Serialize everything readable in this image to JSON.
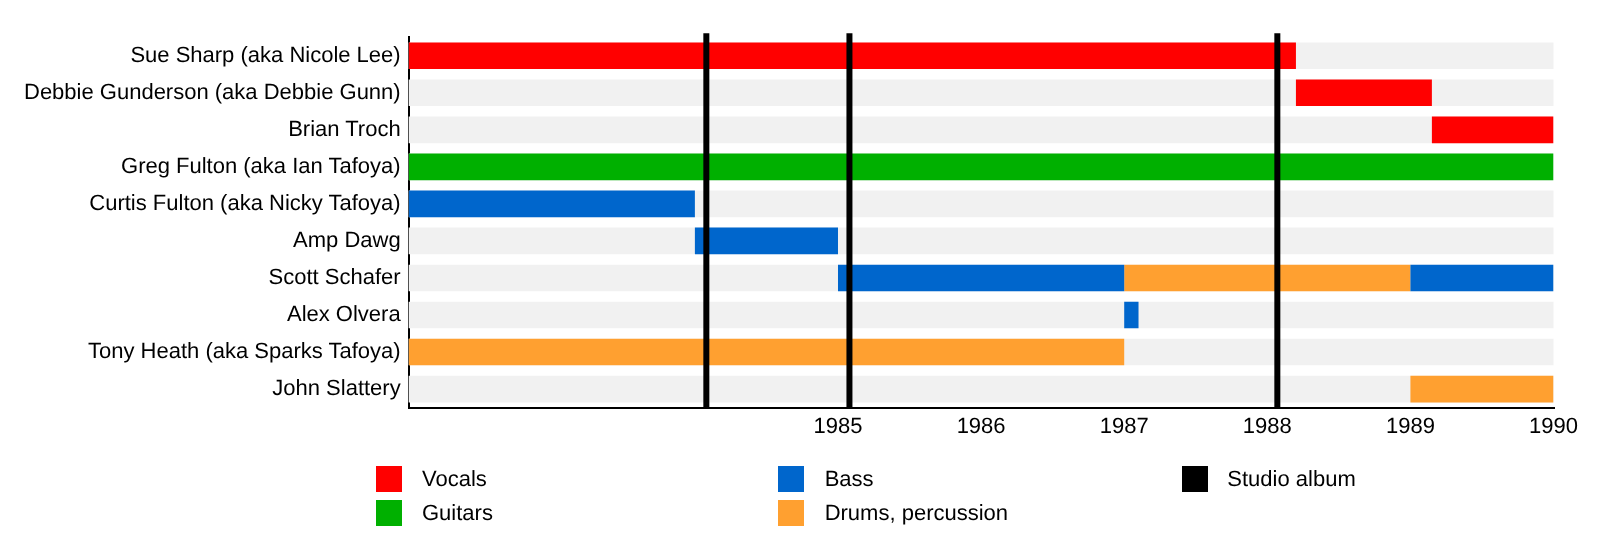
{
  "chart_data": {
    "type": "bar",
    "orientation": "horizontal",
    "categories": [
      "Sue Sharp (aka Nicole Lee)",
      "Debbie Gunderson (aka Debbie Gunn)",
      "Brian Troch",
      "Greg Fulton (aka Ian Tafoya)",
      "Curtis Fulton (aka Nicky Tafoya)",
      "Amp Dawg",
      "Scott Schafer",
      "Alex Olvera",
      "Tony Heath (aka Sparks Tafoya)",
      "John Slattery"
    ],
    "xlim": [
      1982,
      1990
    ],
    "xticks": [
      1985,
      1986,
      1987,
      1988,
      1989,
      1990
    ],
    "grid": false,
    "legend": "bottom",
    "series": [
      {
        "name": "Vocals",
        "color": "#ff0000",
        "base": [
          1982,
          1988.2,
          1989.15,
          null,
          null,
          null,
          null,
          null,
          null,
          null
        ],
        "values": [
          6.2,
          0.95,
          0.85,
          null,
          null,
          null,
          null,
          null,
          null,
          null
        ]
      },
      {
        "name": "Guitars",
        "color": "#00b000",
        "base": [
          null,
          null,
          null,
          1982,
          null,
          null,
          null,
          null,
          null,
          null
        ],
        "values": [
          null,
          null,
          null,
          8,
          null,
          null,
          null,
          null,
          null,
          null
        ]
      },
      {
        "name": "Bass",
        "color": "#0066cc",
        "base": [
          null,
          null,
          null,
          null,
          1982,
          1984,
          1985,
          1987,
          null,
          null
        ],
        "values": [
          null,
          null,
          null,
          null,
          2,
          1,
          2,
          0.1,
          null,
          null
        ]
      },
      {
        "color": "#0066cc",
        "base": [
          null,
          null,
          null,
          null,
          null,
          null,
          1989,
          null,
          null,
          null
        ],
        "values": [
          null,
          null,
          null,
          null,
          null,
          null,
          1,
          null,
          null,
          null
        ]
      },
      {
        "name": "Drums, percussion",
        "color": "#ffa030",
        "base": [
          null,
          null,
          null,
          null,
          null,
          null,
          1987,
          null,
          1982,
          1989
        ],
        "values": [
          null,
          null,
          null,
          null,
          null,
          null,
          2,
          null,
          5,
          1
        ]
      }
    ],
    "ref_lines": [
      {
        "axis": "x",
        "value": 1984.08,
        "label": "Studio album",
        "color": "#000000"
      },
      {
        "axis": "x",
        "value": 1985.08,
        "color": "#000000"
      },
      {
        "axis": "x",
        "value": 1988.07,
        "color": "#000000"
      }
    ]
  }
}
